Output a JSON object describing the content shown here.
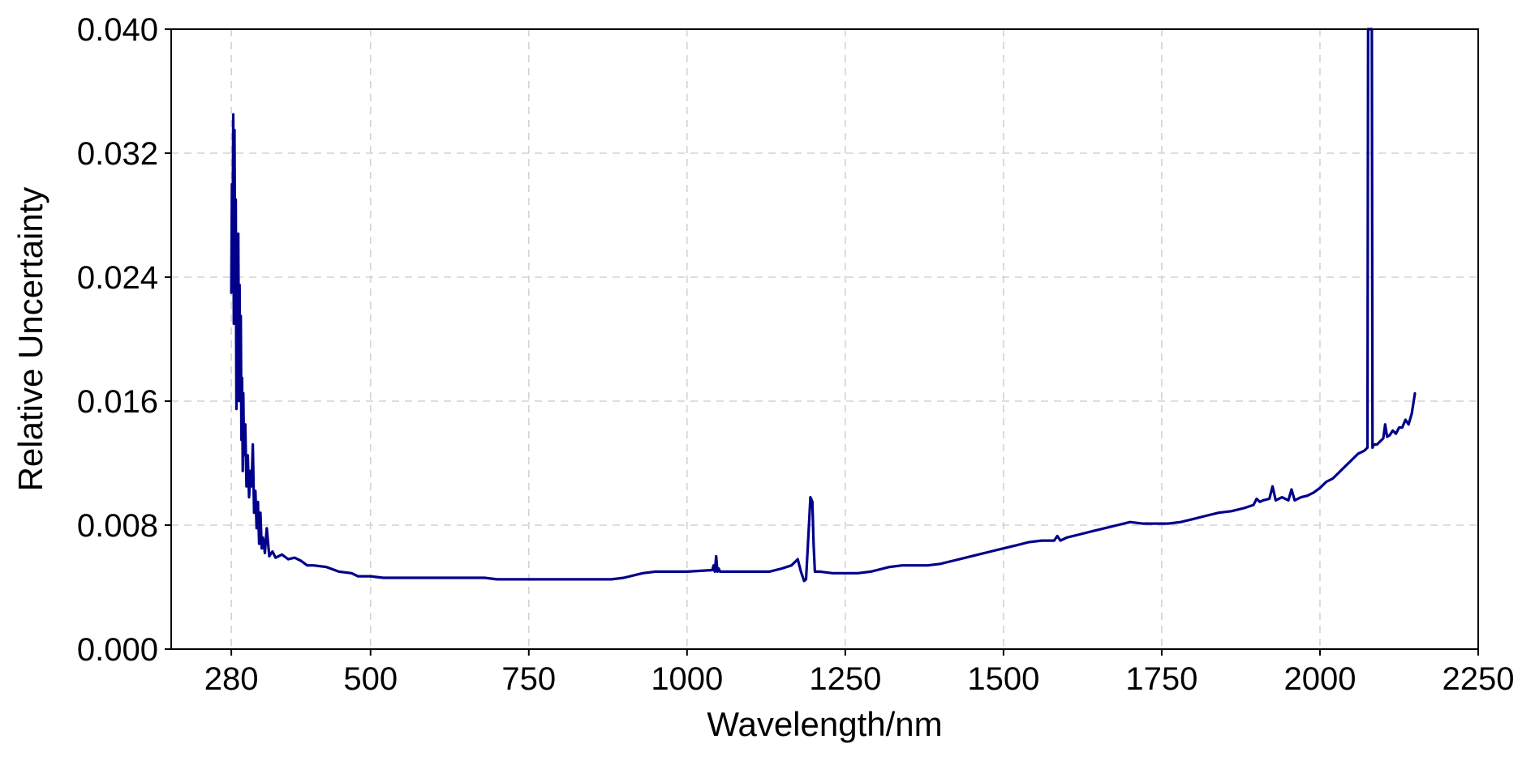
{
  "chart_data": {
    "type": "line",
    "title": "",
    "xlabel": "Wavelength/nm",
    "ylabel": "Relative Uncertainty",
    "xlim": [
      185,
      2250
    ],
    "ylim": [
      0,
      0.04
    ],
    "xticks": [
      280,
      500,
      750,
      1000,
      1250,
      1500,
      1750,
      2000,
      2250
    ],
    "xtick_labels": [
      "280",
      "500",
      "750",
      "1000",
      "1250",
      "1500",
      "1750",
      "2000",
      "2250"
    ],
    "yticks": [
      0,
      0.008,
      0.016,
      0.024,
      0.032,
      0.04
    ],
    "ytick_labels": [
      "0.000",
      "0.008",
      "0.016",
      "0.024",
      "0.032",
      "0.040"
    ],
    "grid": true,
    "legend": "none",
    "series": [
      {
        "color": "#00008b",
        "x": [
          280,
          281,
          282,
          283,
          284,
          285,
          286,
          287,
          288,
          289,
          290,
          291,
          292,
          293,
          294,
          295,
          296,
          297,
          298,
          299,
          300,
          302,
          304,
          306,
          308,
          310,
          312,
          314,
          316,
          318,
          320,
          322,
          324,
          326,
          328,
          330,
          333,
          336,
          340,
          345,
          350,
          360,
          370,
          380,
          390,
          400,
          410,
          430,
          450,
          470,
          480,
          500,
          520,
          550,
          600,
          650,
          680,
          700,
          750,
          800,
          850,
          880,
          900,
          930,
          950,
          1000,
          1040,
          1042,
          1044,
          1046,
          1048,
          1050,
          1052,
          1060,
          1100,
          1130,
          1150,
          1165,
          1175,
          1180,
          1185,
          1188,
          1192,
          1195,
          1198,
          1200,
          1202,
          1204,
          1207,
          1210,
          1230,
          1250,
          1270,
          1290,
          1300,
          1320,
          1340,
          1360,
          1380,
          1400,
          1420,
          1440,
          1460,
          1480,
          1500,
          1520,
          1540,
          1560,
          1580,
          1585,
          1590,
          1600,
          1620,
          1640,
          1660,
          1680,
          1700,
          1720,
          1740,
          1760,
          1780,
          1800,
          1820,
          1840,
          1860,
          1880,
          1895,
          1900,
          1905,
          1910,
          1920,
          1925,
          1930,
          1940,
          1950,
          1955,
          1960,
          1970,
          1980,
          1990,
          2000,
          2010,
          2020,
          2030,
          2040,
          2050,
          2060,
          2070,
          2075,
          2076,
          2078,
          2080,
          2082,
          2083,
          2085,
          2090,
          2095,
          2100,
          2103,
          2106,
          2110,
          2115,
          2120,
          2125,
          2130,
          2135,
          2140,
          2145,
          2150
        ],
        "y": [
          0.023,
          0.03,
          0.026,
          0.0345,
          0.021,
          0.0335,
          0.024,
          0.029,
          0.0155,
          0.0225,
          0.016,
          0.0268,
          0.0175,
          0.0235,
          0.016,
          0.0215,
          0.0135,
          0.0175,
          0.0115,
          0.0165,
          0.0125,
          0.0145,
          0.0105,
          0.0125,
          0.0098,
          0.0115,
          0.0105,
          0.0132,
          0.0088,
          0.0102,
          0.0078,
          0.0095,
          0.0068,
          0.0088,
          0.0065,
          0.0072,
          0.0062,
          0.0078,
          0.006,
          0.0063,
          0.0059,
          0.0061,
          0.0058,
          0.0059,
          0.0057,
          0.0054,
          0.0054,
          0.0053,
          0.005,
          0.0049,
          0.0047,
          0.0047,
          0.0046,
          0.0046,
          0.0046,
          0.0046,
          0.0046,
          0.0045,
          0.0045,
          0.0045,
          0.0045,
          0.0045,
          0.0046,
          0.0049,
          0.005,
          0.005,
          0.0051,
          0.0054,
          0.005,
          0.006,
          0.005,
          0.0052,
          0.005,
          0.005,
          0.005,
          0.005,
          0.0052,
          0.0054,
          0.0058,
          0.005,
          0.0044,
          0.0045,
          0.0075,
          0.0098,
          0.0095,
          0.0068,
          0.005,
          0.005,
          0.005,
          0.005,
          0.0049,
          0.0049,
          0.0049,
          0.005,
          0.0051,
          0.0053,
          0.0054,
          0.0054,
          0.0054,
          0.0055,
          0.0057,
          0.0059,
          0.0061,
          0.0063,
          0.0065,
          0.0067,
          0.0069,
          0.007,
          0.007,
          0.0073,
          0.007,
          0.0072,
          0.0074,
          0.0076,
          0.0078,
          0.008,
          0.0082,
          0.0081,
          0.0081,
          0.0081,
          0.0082,
          0.0084,
          0.0086,
          0.0088,
          0.0089,
          0.0091,
          0.0093,
          0.0097,
          0.0095,
          0.0096,
          0.0097,
          0.0105,
          0.0096,
          0.0098,
          0.0096,
          0.0103,
          0.0096,
          0.0098,
          0.0099,
          0.0101,
          0.0104,
          0.0108,
          0.011,
          0.0114,
          0.0118,
          0.0122,
          0.0126,
          0.0128,
          0.013,
          0.04,
          0.04,
          0.04,
          0.04,
          0.013,
          0.0132,
          0.0132,
          0.0134,
          0.0136,
          0.0145,
          0.0137,
          0.0138,
          0.0141,
          0.0139,
          0.0143,
          0.0143,
          0.0148,
          0.0145,
          0.0152,
          0.0165
        ]
      }
    ]
  }
}
